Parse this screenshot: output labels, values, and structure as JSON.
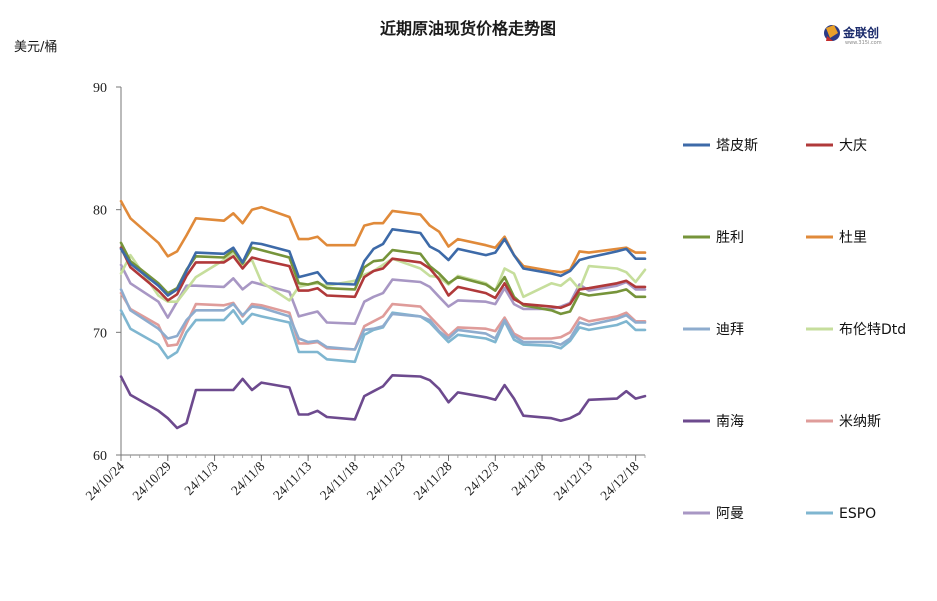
{
  "chart_data": {
    "type": "line",
    "title": "近期原油现货价格走势图",
    "ylabel": "美元/桶",
    "xlabel": "",
    "ylim": [
      60,
      90
    ],
    "yticks": [
      60,
      70,
      80,
      90
    ],
    "xtick_labels": [
      "24/10/24",
      "24/10/29",
      "24/11/3",
      "24/11/8",
      "24/11/13",
      "24/11/18",
      "24/11/23",
      "24/11/28",
      "24/12/3",
      "24/12/8",
      "24/12/13",
      "24/12/18"
    ],
    "xtick_dates": [
      "2024-10-24",
      "2024-10-29",
      "2024-11-03",
      "2024-11-08",
      "2024-11-13",
      "2024-11-18",
      "2024-11-23",
      "2024-11-28",
      "2024-12-03",
      "2024-12-08",
      "2024-12-13",
      "2024-12-18"
    ],
    "x_range": [
      "2024-10-24",
      "2024-12-19"
    ],
    "grid": false,
    "legend_position": "right",
    "dates": [
      "2024-10-24",
      "2024-10-25",
      "2024-10-28",
      "2024-10-29",
      "2024-10-30",
      "2024-10-31",
      "2024-11-01",
      "2024-11-04",
      "2024-11-05",
      "2024-11-06",
      "2024-11-07",
      "2024-11-08",
      "2024-11-11",
      "2024-11-12",
      "2024-11-13",
      "2024-11-14",
      "2024-11-15",
      "2024-11-18",
      "2024-11-19",
      "2024-11-20",
      "2024-11-21",
      "2024-11-22",
      "2024-11-25",
      "2024-11-26",
      "2024-11-27",
      "2024-11-28",
      "2024-11-29",
      "2024-12-02",
      "2024-12-03",
      "2024-12-04",
      "2024-12-05",
      "2024-12-06",
      "2024-12-09",
      "2024-12-10",
      "2024-12-11",
      "2024-12-12",
      "2024-12-13",
      "2024-12-16",
      "2024-12-17",
      "2024-12-18",
      "2024-12-19"
    ],
    "series": [
      {
        "name": "塔皮斯",
        "color": "#3d6aa8",
        "values": [
          76.8,
          75.6,
          73.8,
          73.0,
          73.5,
          75.0,
          76.5,
          76.4,
          76.9,
          75.7,
          77.3,
          77.2,
          76.6,
          74.5,
          74.7,
          74.9,
          74.0,
          73.9,
          75.8,
          76.8,
          77.2,
          78.4,
          78.1,
          77.0,
          76.6,
          75.9,
          76.8,
          76.3,
          76.5,
          77.6,
          76.3,
          75.2,
          74.8,
          74.6,
          75.0,
          75.9,
          76.1,
          76.6,
          76.8,
          76.0,
          76.0
        ]
      },
      {
        "name": "大庆",
        "color": "#b0393a",
        "values": [
          76.9,
          75.3,
          73.4,
          72.6,
          73.1,
          74.6,
          75.7,
          75.7,
          76.2,
          75.2,
          76.1,
          75.9,
          75.4,
          73.4,
          73.4,
          73.6,
          73.0,
          72.9,
          74.5,
          75.0,
          75.2,
          76.0,
          75.7,
          75.2,
          74.3,
          73.0,
          73.7,
          73.2,
          72.8,
          74.0,
          72.7,
          72.3,
          72.1,
          72.0,
          72.3,
          73.5,
          73.6,
          74.0,
          74.2,
          73.7,
          73.7
        ]
      },
      {
        "name": "胜利",
        "color": "#76943a",
        "values": [
          77.3,
          75.8,
          74.0,
          73.2,
          73.6,
          75.1,
          76.2,
          76.1,
          76.7,
          75.6,
          76.9,
          76.7,
          76.1,
          74.0,
          73.9,
          74.1,
          73.6,
          73.5,
          75.3,
          75.8,
          75.9,
          76.7,
          76.4,
          75.4,
          74.8,
          74.0,
          74.5,
          73.9,
          73.4,
          74.5,
          72.9,
          72.2,
          71.8,
          71.5,
          71.7,
          73.2,
          73.0,
          73.3,
          73.5,
          72.9,
          72.9
        ]
      },
      {
        "name": "杜里",
        "color": "#e08a3a",
        "values": [
          80.7,
          79.3,
          77.3,
          76.2,
          76.6,
          77.9,
          79.3,
          79.1,
          79.7,
          78.9,
          80.0,
          80.2,
          79.4,
          77.6,
          77.6,
          77.8,
          77.1,
          77.1,
          78.7,
          78.9,
          78.9,
          79.9,
          79.6,
          78.7,
          78.2,
          77.0,
          77.6,
          77.1,
          76.9,
          77.8,
          76.3,
          75.4,
          75.0,
          74.9,
          75.1,
          76.6,
          76.5,
          76.8,
          76.9,
          76.5,
          76.5
        ]
      },
      {
        "name": "迪拜",
        "color": "#8eacce",
        "values": [
          73.5,
          71.8,
          70.3,
          69.5,
          69.7,
          71.0,
          71.8,
          71.8,
          72.3,
          71.4,
          72.1,
          72.0,
          71.3,
          69.5,
          69.2,
          69.3,
          68.8,
          68.6,
          70.2,
          70.3,
          70.5,
          71.5,
          71.3,
          71.0,
          70.1,
          69.5,
          70.2,
          69.9,
          69.5,
          71.0,
          69.7,
          69.2,
          69.2,
          69.0,
          69.5,
          70.8,
          70.6,
          71.1,
          71.4,
          70.8,
          70.8
        ]
      },
      {
        "name": "布伦特Dtd",
        "color": "#c6de9c",
        "values": [
          74.8,
          76.3,
          73.0,
          72.5,
          72.5,
          73.5,
          74.5,
          75.9,
          76.5,
          75.5,
          75.9,
          74.1,
          72.6,
          73.7,
          73.9,
          74.0,
          73.8,
          74.2,
          74.7,
          75.0,
          75.5,
          76.0,
          75.2,
          74.6,
          74.5,
          73.9,
          74.6,
          74.0,
          73.4,
          75.2,
          74.8,
          72.9,
          74.0,
          73.8,
          74.4,
          73.5,
          75.4,
          75.2,
          74.9,
          74.1,
          75.1
        ]
      },
      {
        "name": "南海",
        "color": "#6d4a8e",
        "values": [
          66.4,
          64.9,
          63.6,
          63.0,
          62.2,
          62.6,
          65.3,
          65.3,
          65.3,
          66.2,
          65.3,
          65.9,
          65.5,
          63.3,
          63.3,
          63.6,
          63.1,
          62.9,
          64.8,
          65.2,
          65.6,
          66.5,
          66.4,
          66.1,
          65.4,
          64.3,
          65.1,
          64.7,
          64.5,
          65.7,
          64.6,
          63.2,
          63.0,
          62.8,
          63.0,
          63.4,
          64.5,
          64.6,
          65.2,
          64.6,
          64.8
        ]
      },
      {
        "name": "米纳斯",
        "color": "#df9c9a",
        "values": [
          73.2,
          71.9,
          70.6,
          68.9,
          69.0,
          70.7,
          72.3,
          72.2,
          72.4,
          71.3,
          72.3,
          72.2,
          71.6,
          69.1,
          69.1,
          69.2,
          68.7,
          68.6,
          70.5,
          70.9,
          71.3,
          72.3,
          72.1,
          71.3,
          70.5,
          69.7,
          70.4,
          70.3,
          70.1,
          71.2,
          69.9,
          69.5,
          69.5,
          69.6,
          70.0,
          71.2,
          70.9,
          71.3,
          71.6,
          70.9,
          70.9
        ]
      },
      {
        "name": "阿曼",
        "color": "#a897c4",
        "values": [
          75.5,
          74.0,
          72.5,
          71.2,
          72.5,
          73.8,
          73.8,
          73.7,
          74.4,
          73.5,
          74.1,
          73.9,
          73.3,
          71.3,
          71.5,
          71.7,
          70.8,
          70.7,
          72.5,
          72.9,
          73.2,
          74.3,
          74.1,
          73.7,
          72.9,
          72.1,
          72.6,
          72.5,
          72.3,
          73.6,
          72.3,
          71.9,
          71.9,
          72.1,
          72.4,
          73.9,
          73.4,
          73.8,
          74.1,
          73.5,
          73.5
        ]
      },
      {
        "name": "ESPO",
        "color": "#7fb6d0",
        "values": [
          71.8,
          70.3,
          69.0,
          67.9,
          68.4,
          70.0,
          71.0,
          71.0,
          71.8,
          70.7,
          71.5,
          71.3,
          70.8,
          68.4,
          68.4,
          68.4,
          67.8,
          67.6,
          69.8,
          70.2,
          70.4,
          71.6,
          71.3,
          70.8,
          70.0,
          69.2,
          69.8,
          69.5,
          69.2,
          70.9,
          69.4,
          69.0,
          68.9,
          68.7,
          69.3,
          70.4,
          70.2,
          70.6,
          70.9,
          70.2,
          70.2
        ]
      }
    ]
  },
  "logo": {
    "text": "金联创",
    "sub": "www.315i.com"
  }
}
